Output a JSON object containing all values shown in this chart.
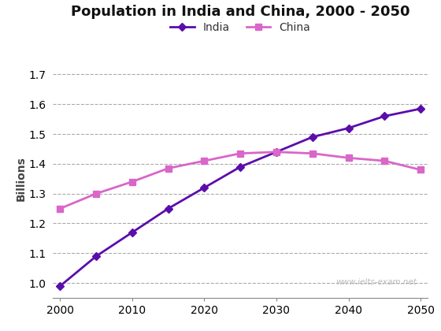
{
  "title": "Population in India and China, 2000 - 2050",
  "ylabel": "Billions",
  "years": [
    2000,
    2005,
    2010,
    2015,
    2020,
    2025,
    2030,
    2035,
    2040,
    2045,
    2050
  ],
  "xtick_years": [
    2000,
    2010,
    2020,
    2030,
    2040,
    2050
  ],
  "india": [
    0.99,
    1.09,
    1.17,
    1.25,
    1.32,
    1.39,
    1.44,
    1.49,
    1.52,
    1.56,
    1.585
  ],
  "china": [
    1.25,
    1.3,
    1.34,
    1.385,
    1.41,
    1.435,
    1.44,
    1.435,
    1.42,
    1.41,
    1.38
  ],
  "india_color": "#5B0DAC",
  "china_color": "#D966C8",
  "ylim_bottom": 0.95,
  "ylim_top": 1.75,
  "yticks": [
    1.0,
    1.1,
    1.2,
    1.3,
    1.4,
    1.5,
    1.6,
    1.7
  ],
  "watermark": "www.ielts-exam.net",
  "background_color": "#ffffff",
  "grid_color": "#aaaaaa"
}
